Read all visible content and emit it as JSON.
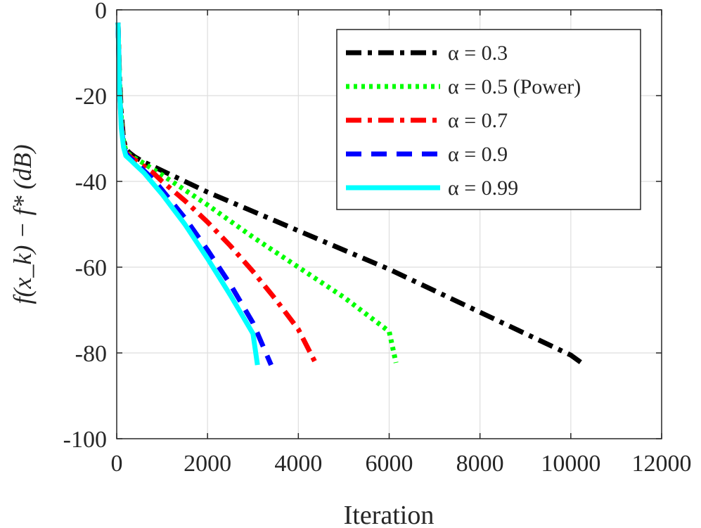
{
  "chart_data": {
    "type": "line",
    "xlabel": "Iteration",
    "ylabel": "f(x_k) − f* (dB)",
    "xlim": [
      0,
      12000
    ],
    "ylim": [
      -100,
      0
    ],
    "xticks": [
      0,
      2000,
      4000,
      6000,
      8000,
      10000,
      12000
    ],
    "xtick_labels": [
      "0",
      "2000",
      "4000",
      "6000",
      "8000",
      "10000",
      "12000"
    ],
    "yticks": [
      0,
      -20,
      -40,
      -60,
      -80,
      -100
    ],
    "ytick_labels": [
      "0",
      "-20",
      "-40",
      "-60",
      "-80",
      "-100"
    ],
    "grid": true,
    "legend_position": "top-right",
    "series": [
      {
        "name": "α = 0.3",
        "color": "#000000",
        "dash": "dashdot",
        "x": [
          30,
          60,
          100,
          150,
          200,
          300,
          400,
          600,
          800,
          1000,
          1500,
          2000,
          3000,
          4000,
          5000,
          6000,
          7000,
          8000,
          9000,
          10000,
          10300
        ],
        "y": [
          -3,
          -15,
          -24,
          -30,
          -32.5,
          -33.5,
          -34.3,
          -35.5,
          -36.5,
          -37.5,
          -40,
          -42.5,
          -47,
          -51.5,
          -56,
          -60.5,
          -65.5,
          -70.5,
          -75.5,
          -80.5,
          -82.8
        ]
      },
      {
        "name": "α = 0.5 (Power)",
        "color": "#00ff00",
        "dash": "dotted",
        "x": [
          30,
          60,
          100,
          150,
          200,
          300,
          400,
          600,
          800,
          1000,
          1500,
          2000,
          3000,
          4000,
          5000,
          6000,
          6150
        ],
        "y": [
          -3,
          -16,
          -25,
          -30.5,
          -32.8,
          -34,
          -34.6,
          -35.8,
          -37.2,
          -38.5,
          -42,
          -45.5,
          -53,
          -60,
          -67,
          -75,
          -82.3
        ]
      },
      {
        "name": "α = 0.7",
        "color": "#ff0000",
        "dash": "dashdot",
        "x": [
          30,
          60,
          100,
          150,
          200,
          300,
          400,
          600,
          800,
          1000,
          1500,
          2000,
          2500,
          3000,
          3500,
          4000,
          4400
        ],
        "y": [
          -3,
          -17,
          -26,
          -31,
          -33.2,
          -34.3,
          -35,
          -36.5,
          -38,
          -40,
          -44.5,
          -49.5,
          -55,
          -61,
          -67.5,
          -74.5,
          -82.8
        ]
      },
      {
        "name": "α = 0.9",
        "color": "#0000ff",
        "dash": "dashed",
        "x": [
          30,
          60,
          100,
          150,
          200,
          300,
          400,
          600,
          800,
          1000,
          1500,
          2000,
          2500,
          3000,
          3400
        ],
        "y": [
          -3,
          -18,
          -27,
          -31.5,
          -33.5,
          -34.6,
          -35.5,
          -37.5,
          -39.5,
          -42,
          -48.5,
          -56,
          -64,
          -73,
          -82.8
        ]
      },
      {
        "name": "α = 0.99",
        "color": "#00ffff",
        "dash": "solid",
        "x": [
          30,
          60,
          100,
          150,
          200,
          300,
          400,
          600,
          800,
          1000,
          1500,
          2000,
          2500,
          3000,
          3100
        ],
        "y": [
          -3,
          -18,
          -27.5,
          -32,
          -34,
          -35,
          -36,
          -38,
          -40.5,
          -43,
          -50,
          -58,
          -66.5,
          -75.5,
          -82.8
        ]
      }
    ]
  }
}
